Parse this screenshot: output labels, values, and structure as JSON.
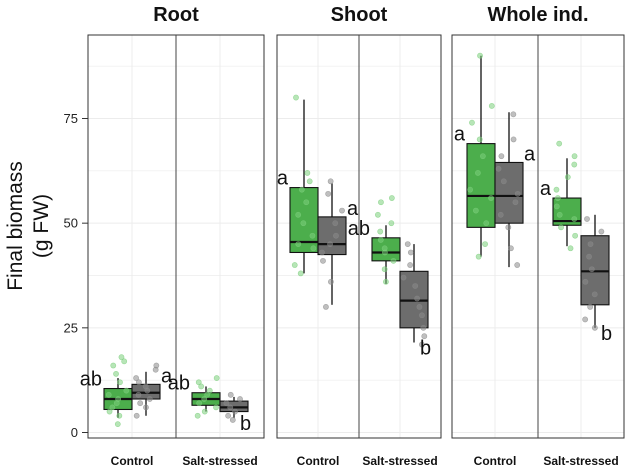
{
  "chart_data": {
    "type": "box",
    "ylabel_line1": "Final biomass",
    "ylabel_line2": "(g FW)",
    "yticks": [
      0,
      25,
      50,
      75
    ],
    "ylim": [
      -1,
      93
    ],
    "conditions": [
      "Control",
      "Salt-stressed"
    ],
    "colors": {
      "green": "#4cae4c",
      "grey": "#6d6d6d",
      "green_point": "#7ccf7c",
      "grey_point": "#8a8a8a"
    },
    "facets": [
      {
        "title": "Root",
        "groups": [
          {
            "condition": "Control",
            "boxes": [
              {
                "color": "green",
                "min": 3.5,
                "q1": 5.5,
                "median": 8,
                "q3": 10.5,
                "max": 13,
                "letter": "ab",
                "points": [
                  2,
                  4,
                  5,
                  6,
                  7,
                  8,
                  9,
                  10,
                  12,
                  14,
                  16,
                  17,
                  18
                ]
              },
              {
                "color": "grey",
                "min": 4,
                "q1": 8,
                "median": 9.5,
                "q3": 11.5,
                "max": 14.5,
                "letter": "a",
                "points": [
                  4,
                  6,
                  7,
                  8,
                  9,
                  10,
                  11,
                  12,
                  13,
                  15,
                  16
                ]
              }
            ]
          },
          {
            "condition": "Salt-stressed",
            "boxes": [
              {
                "color": "green",
                "min": 5,
                "q1": 6.5,
                "median": 8,
                "q3": 9.5,
                "max": 11,
                "letter": "ab",
                "points": [
                  4,
                  5,
                  6,
                  7,
                  8,
                  9,
                  10,
                  11,
                  12,
                  13
                ]
              },
              {
                "color": "grey",
                "min": 3.5,
                "q1": 5,
                "median": 6,
                "q3": 7.5,
                "max": 8.5,
                "letter": "b",
                "points": [
                  3,
                  4,
                  5,
                  6,
                  7,
                  8,
                  9
                ]
              }
            ]
          }
        ]
      },
      {
        "title": "Shoot",
        "groups": [
          {
            "condition": "Control",
            "boxes": [
              {
                "color": "green",
                "min": 38,
                "q1": 43,
                "median": 45.5,
                "q3": 58.5,
                "max": 79.5,
                "letter": "a",
                "points": [
                  38,
                  40,
                  44,
                  45,
                  47,
                  50,
                  52,
                  55,
                  58,
                  60,
                  62,
                  80
                ]
              },
              {
                "color": "grey",
                "min": 30.5,
                "q1": 42.5,
                "median": 45,
                "q3": 51.5,
                "max": 59.5,
                "letter": "a",
                "points": [
                  30,
                  36,
                  41,
                  43,
                  45,
                  47,
                  50,
                  53,
                  57,
                  60
                ]
              }
            ]
          },
          {
            "condition": "Salt-stressed",
            "boxes": [
              {
                "color": "green",
                "min": 35.5,
                "q1": 41,
                "median": 43,
                "q3": 46.5,
                "max": 49.5,
                "letter": "ab",
                "points": [
                  36,
                  39,
                  41,
                  43,
                  44,
                  46,
                  48,
                  50,
                  52,
                  55,
                  56
                ]
              },
              {
                "color": "grey",
                "min": 21.5,
                "q1": 25,
                "median": 31.5,
                "q3": 38.5,
                "max": 45,
                "letter": "b",
                "points": [
                  21,
                  23,
                  25,
                  28,
                  30,
                  32,
                  35,
                  37,
                  40,
                  43,
                  45
                ]
              }
            ]
          }
        ]
      },
      {
        "title": "Whole ind.",
        "groups": [
          {
            "condition": "Control",
            "boxes": [
              {
                "color": "green",
                "min": 42,
                "q1": 49,
                "median": 56.5,
                "q3": 69,
                "max": 90,
                "letter": "a",
                "points": [
                  42,
                  45,
                  50,
                  53,
                  56,
                  58,
                  62,
                  66,
                  70,
                  74,
                  78,
                  90
                ]
              },
              {
                "color": "grey",
                "min": 39.5,
                "q1": 50,
                "median": 56.5,
                "q3": 64.5,
                "max": 76.5,
                "letter": "a",
                "points": [
                  40,
                  44,
                  49,
                  52,
                  55,
                  57,
                  60,
                  63,
                  66,
                  70,
                  76
                ]
              }
            ]
          },
          {
            "condition": "Salt-stressed",
            "boxes": [
              {
                "color": "green",
                "min": 44.5,
                "q1": 49.5,
                "median": 50.5,
                "q3": 56,
                "max": 65.5,
                "letter": "a",
                "points": [
                  44,
                  47,
                  49,
                  51,
                  52,
                  54,
                  56,
                  58,
                  61,
                  64,
                  66,
                  69
                ]
              },
              {
                "color": "grey",
                "min": 25,
                "q1": 30.5,
                "median": 38.5,
                "q3": 47,
                "max": 52,
                "letter": "b",
                "points": [
                  25,
                  27,
                  30,
                  33,
                  36,
                  39,
                  42,
                  45,
                  48,
                  51
                ]
              }
            ]
          }
        ]
      }
    ]
  }
}
